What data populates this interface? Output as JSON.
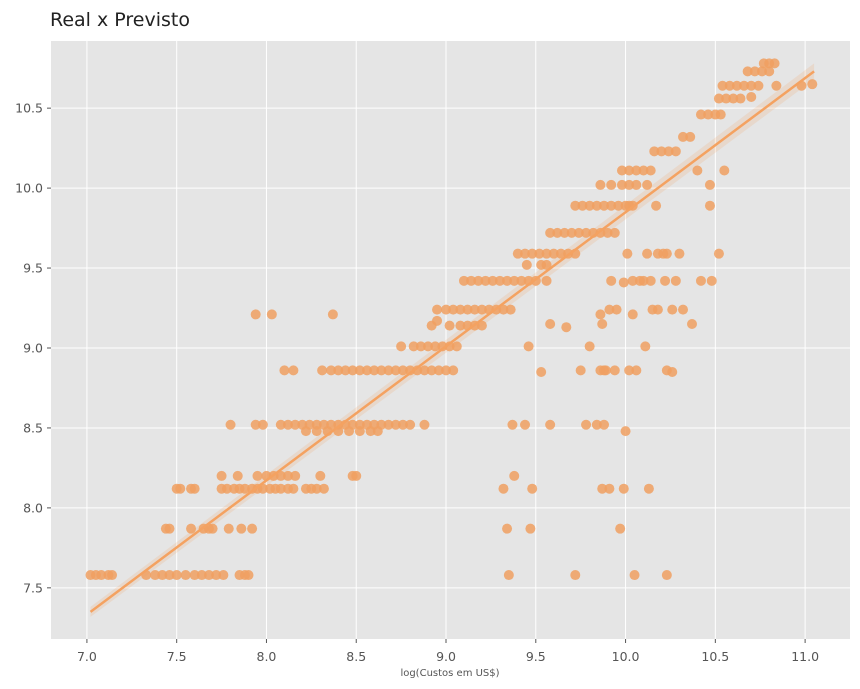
{
  "chart_data": {
    "type": "scatter",
    "title": "Real x Previsto",
    "xlabel": "log(Custos em US$)",
    "ylabel": "",
    "xlim": [
      6.8,
      11.25
    ],
    "ylim": [
      7.18,
      10.92
    ],
    "x_ticks": [
      "7.0",
      "7.5",
      "8.0",
      "8.5",
      "9.0",
      "9.5",
      "10.0",
      "10.5",
      "11.0"
    ],
    "y_ticks": [
      "7.5",
      "8.0",
      "8.5",
      "9.0",
      "9.5",
      "10.0",
      "10.5"
    ],
    "grid": true,
    "background": "#e5e5e5",
    "grid_color": "#ffffff",
    "point_color": "#f0a062",
    "line_color": "#f4a261",
    "regression_line": {
      "x": [
        7.02,
        11.05
      ],
      "y": [
        7.35,
        10.73
      ]
    },
    "series": [
      {
        "points": [
          [
            7.02,
            7.58
          ],
          [
            7.05,
            7.58
          ],
          [
            7.08,
            7.58
          ],
          [
            7.12,
            7.58
          ],
          [
            7.14,
            7.58
          ],
          [
            7.33,
            7.58
          ],
          [
            7.38,
            7.58
          ],
          [
            7.42,
            7.58
          ],
          [
            7.46,
            7.58
          ],
          [
            7.5,
            7.58
          ],
          [
            7.55,
            7.58
          ],
          [
            7.6,
            7.58
          ],
          [
            7.64,
            7.58
          ],
          [
            7.68,
            7.58
          ],
          [
            7.72,
            7.58
          ],
          [
            7.76,
            7.58
          ],
          [
            7.85,
            7.58
          ],
          [
            7.88,
            7.58
          ],
          [
            7.9,
            7.58
          ],
          [
            7.44,
            7.87
          ],
          [
            7.46,
            7.87
          ],
          [
            7.58,
            7.87
          ],
          [
            7.65,
            7.87
          ],
          [
            7.68,
            7.87
          ],
          [
            7.7,
            7.87
          ],
          [
            7.79,
            7.87
          ],
          [
            7.86,
            7.87
          ],
          [
            7.92,
            7.87
          ],
          [
            7.5,
            8.12
          ],
          [
            7.52,
            8.12
          ],
          [
            7.58,
            8.12
          ],
          [
            7.6,
            8.12
          ],
          [
            7.75,
            8.12
          ],
          [
            7.78,
            8.12
          ],
          [
            7.82,
            8.12
          ],
          [
            7.85,
            8.12
          ],
          [
            7.88,
            8.12
          ],
          [
            7.92,
            8.12
          ],
          [
            7.95,
            8.12
          ],
          [
            7.98,
            8.12
          ],
          [
            8.02,
            8.12
          ],
          [
            8.05,
            8.12
          ],
          [
            8.08,
            8.12
          ],
          [
            8.12,
            8.12
          ],
          [
            8.15,
            8.12
          ],
          [
            8.22,
            8.12
          ],
          [
            8.25,
            8.12
          ],
          [
            8.28,
            8.12
          ],
          [
            8.32,
            8.12
          ],
          [
            7.75,
            8.2
          ],
          [
            7.84,
            8.2
          ],
          [
            7.95,
            8.2
          ],
          [
            8.0,
            8.2
          ],
          [
            8.04,
            8.2
          ],
          [
            8.08,
            8.2
          ],
          [
            8.12,
            8.2
          ],
          [
            8.16,
            8.2
          ],
          [
            8.3,
            8.2
          ],
          [
            8.48,
            8.2
          ],
          [
            8.5,
            8.2
          ],
          [
            7.8,
            8.52
          ],
          [
            7.94,
            8.52
          ],
          [
            7.98,
            8.52
          ],
          [
            8.08,
            8.52
          ],
          [
            8.12,
            8.52
          ],
          [
            8.16,
            8.52
          ],
          [
            8.2,
            8.52
          ],
          [
            8.24,
            8.52
          ],
          [
            8.28,
            8.52
          ],
          [
            8.32,
            8.52
          ],
          [
            8.36,
            8.52
          ],
          [
            8.4,
            8.52
          ],
          [
            8.44,
            8.52
          ],
          [
            8.48,
            8.52
          ],
          [
            8.52,
            8.52
          ],
          [
            8.56,
            8.52
          ],
          [
            8.6,
            8.52
          ],
          [
            8.64,
            8.52
          ],
          [
            8.68,
            8.52
          ],
          [
            8.72,
            8.52
          ],
          [
            8.76,
            8.52
          ],
          [
            8.8,
            8.52
          ],
          [
            8.88,
            8.52
          ],
          [
            8.22,
            8.48
          ],
          [
            8.28,
            8.48
          ],
          [
            8.34,
            8.48
          ],
          [
            8.4,
            8.48
          ],
          [
            8.46,
            8.48
          ],
          [
            8.52,
            8.48
          ],
          [
            8.58,
            8.48
          ],
          [
            8.62,
            8.48
          ],
          [
            8.1,
            8.86
          ],
          [
            8.15,
            8.86
          ],
          [
            8.31,
            8.86
          ],
          [
            8.36,
            8.86
          ],
          [
            8.4,
            8.86
          ],
          [
            8.44,
            8.86
          ],
          [
            8.48,
            8.86
          ],
          [
            8.52,
            8.86
          ],
          [
            8.56,
            8.86
          ],
          [
            8.6,
            8.86
          ],
          [
            8.64,
            8.86
          ],
          [
            8.68,
            8.86
          ],
          [
            8.72,
            8.86
          ],
          [
            8.76,
            8.86
          ],
          [
            8.8,
            8.86
          ],
          [
            8.84,
            8.86
          ],
          [
            8.88,
            8.86
          ],
          [
            8.92,
            8.86
          ],
          [
            8.96,
            8.86
          ],
          [
            9.0,
            8.86
          ],
          [
            9.04,
            8.86
          ],
          [
            8.75,
            9.01
          ],
          [
            8.82,
            9.01
          ],
          [
            8.86,
            9.01
          ],
          [
            8.9,
            9.01
          ],
          [
            8.94,
            9.01
          ],
          [
            8.98,
            9.01
          ],
          [
            9.02,
            9.01
          ],
          [
            9.06,
            9.01
          ],
          [
            7.94,
            9.21
          ],
          [
            8.03,
            9.21
          ],
          [
            8.37,
            9.21
          ],
          [
            8.92,
            9.14
          ],
          [
            8.95,
            9.17
          ],
          [
            9.02,
            9.14
          ],
          [
            9.08,
            9.14
          ],
          [
            9.12,
            9.14
          ],
          [
            9.16,
            9.14
          ],
          [
            9.2,
            9.14
          ],
          [
            8.95,
            9.24
          ],
          [
            9.0,
            9.24
          ],
          [
            9.04,
            9.24
          ],
          [
            9.08,
            9.24
          ],
          [
            9.12,
            9.24
          ],
          [
            9.16,
            9.24
          ],
          [
            9.2,
            9.24
          ],
          [
            9.24,
            9.24
          ],
          [
            9.28,
            9.24
          ],
          [
            9.32,
            9.24
          ],
          [
            9.36,
            9.24
          ],
          [
            9.1,
            9.42
          ],
          [
            9.14,
            9.42
          ],
          [
            9.18,
            9.42
          ],
          [
            9.22,
            9.42
          ],
          [
            9.26,
            9.42
          ],
          [
            9.3,
            9.42
          ],
          [
            9.34,
            9.42
          ],
          [
            9.38,
            9.42
          ],
          [
            9.42,
            9.42
          ],
          [
            9.46,
            9.42
          ],
          [
            9.5,
            9.42
          ],
          [
            9.56,
            9.42
          ],
          [
            9.4,
            9.59
          ],
          [
            9.44,
            9.59
          ],
          [
            9.48,
            9.59
          ],
          [
            9.52,
            9.59
          ],
          [
            9.56,
            9.59
          ],
          [
            9.6,
            9.59
          ],
          [
            9.64,
            9.59
          ],
          [
            9.68,
            9.59
          ],
          [
            9.72,
            9.59
          ],
          [
            9.45,
            9.52
          ],
          [
            9.53,
            9.52
          ],
          [
            9.56,
            9.52
          ],
          [
            9.58,
            9.72
          ],
          [
            9.62,
            9.72
          ],
          [
            9.66,
            9.72
          ],
          [
            9.7,
            9.72
          ],
          [
            9.74,
            9.72
          ],
          [
            9.78,
            9.72
          ],
          [
            9.82,
            9.72
          ],
          [
            9.86,
            9.72
          ],
          [
            9.9,
            9.72
          ],
          [
            9.94,
            9.72
          ],
          [
            9.72,
            9.89
          ],
          [
            9.76,
            9.89
          ],
          [
            9.8,
            9.89
          ],
          [
            9.84,
            9.89
          ],
          [
            9.88,
            9.89
          ],
          [
            9.92,
            9.89
          ],
          [
            9.96,
            9.89
          ],
          [
            10.0,
            9.89
          ],
          [
            10.04,
            9.89
          ],
          [
            10.17,
            9.89
          ],
          [
            10.47,
            9.89
          ],
          [
            9.86,
            10.02
          ],
          [
            9.92,
            10.02
          ],
          [
            9.98,
            10.02
          ],
          [
            10.02,
            10.02
          ],
          [
            10.06,
            10.02
          ],
          [
            10.12,
            10.02
          ],
          [
            10.47,
            10.02
          ],
          [
            9.98,
            10.11
          ],
          [
            10.02,
            10.11
          ],
          [
            10.06,
            10.11
          ],
          [
            10.1,
            10.11
          ],
          [
            10.14,
            10.11
          ],
          [
            10.4,
            10.11
          ],
          [
            10.55,
            10.11
          ],
          [
            10.16,
            10.23
          ],
          [
            10.2,
            10.23
          ],
          [
            10.24,
            10.23
          ],
          [
            10.28,
            10.23
          ],
          [
            10.32,
            10.32
          ],
          [
            10.36,
            10.32
          ],
          [
            10.42,
            10.46
          ],
          [
            10.46,
            10.46
          ],
          [
            10.5,
            10.46
          ],
          [
            10.53,
            10.46
          ],
          [
            10.52,
            10.56
          ],
          [
            10.56,
            10.56
          ],
          [
            10.6,
            10.56
          ],
          [
            10.64,
            10.56
          ],
          [
            10.7,
            10.57
          ],
          [
            10.54,
            10.64
          ],
          [
            10.58,
            10.64
          ],
          [
            10.62,
            10.64
          ],
          [
            10.66,
            10.64
          ],
          [
            10.7,
            10.64
          ],
          [
            10.74,
            10.64
          ],
          [
            10.84,
            10.64
          ],
          [
            10.98,
            10.64
          ],
          [
            11.04,
            10.65
          ],
          [
            10.68,
            10.73
          ],
          [
            10.72,
            10.73
          ],
          [
            10.76,
            10.73
          ],
          [
            10.8,
            10.73
          ],
          [
            10.77,
            10.78
          ],
          [
            10.8,
            10.78
          ],
          [
            10.83,
            10.78
          ],
          [
            9.32,
            8.12
          ],
          [
            9.37,
            8.52
          ],
          [
            9.38,
            8.2
          ],
          [
            9.44,
            8.52
          ],
          [
            9.48,
            8.12
          ],
          [
            9.35,
            7.58
          ],
          [
            9.34,
            7.87
          ],
          [
            9.47,
            7.87
          ],
          [
            9.46,
            9.01
          ],
          [
            9.53,
            8.85
          ],
          [
            9.58,
            8.52
          ],
          [
            9.58,
            9.15
          ],
          [
            9.67,
            9.13
          ],
          [
            9.72,
            7.58
          ],
          [
            9.75,
            8.86
          ],
          [
            9.78,
            8.52
          ],
          [
            9.8,
            9.01
          ],
          [
            9.84,
            8.52
          ],
          [
            9.86,
            8.86
          ],
          [
            9.87,
            8.12
          ],
          [
            9.88,
            8.52
          ],
          [
            9.89,
            8.86
          ],
          [
            9.91,
            8.12
          ],
          [
            9.86,
            9.21
          ],
          [
            9.87,
            9.15
          ],
          [
            9.91,
            9.24
          ],
          [
            9.95,
            9.24
          ],
          [
            9.94,
            8.86
          ],
          [
            9.97,
            7.87
          ],
          [
            9.99,
            8.12
          ],
          [
            10.0,
            8.48
          ],
          [
            10.01,
            9.59
          ],
          [
            10.02,
            8.86
          ],
          [
            10.04,
            9.21
          ],
          [
            10.05,
            7.58
          ],
          [
            10.06,
            8.86
          ],
          [
            10.04,
            9.42
          ],
          [
            10.1,
            9.42
          ],
          [
            10.11,
            9.01
          ],
          [
            10.12,
            9.59
          ],
          [
            10.13,
            8.12
          ],
          [
            10.15,
            9.24
          ],
          [
            10.18,
            9.24
          ],
          [
            10.23,
            7.58
          ],
          [
            10.23,
            8.86
          ],
          [
            10.26,
            8.85
          ],
          [
            10.22,
            9.42
          ],
          [
            10.23,
            9.59
          ],
          [
            10.26,
            9.24
          ],
          [
            10.28,
            9.42
          ],
          [
            10.32,
            9.24
          ],
          [
            10.3,
            9.59
          ],
          [
            10.37,
            9.15
          ],
          [
            10.42,
            9.42
          ],
          [
            10.48,
            9.42
          ],
          [
            10.52,
            9.59
          ],
          [
            10.08,
            9.42
          ],
          [
            10.14,
            9.42
          ],
          [
            10.18,
            9.59
          ],
          [
            10.21,
            9.59
          ],
          [
            9.99,
            9.41
          ],
          [
            10.02,
            9.89
          ],
          [
            9.92,
            9.42
          ],
          [
            9.88,
            8.86
          ]
        ]
      }
    ]
  }
}
